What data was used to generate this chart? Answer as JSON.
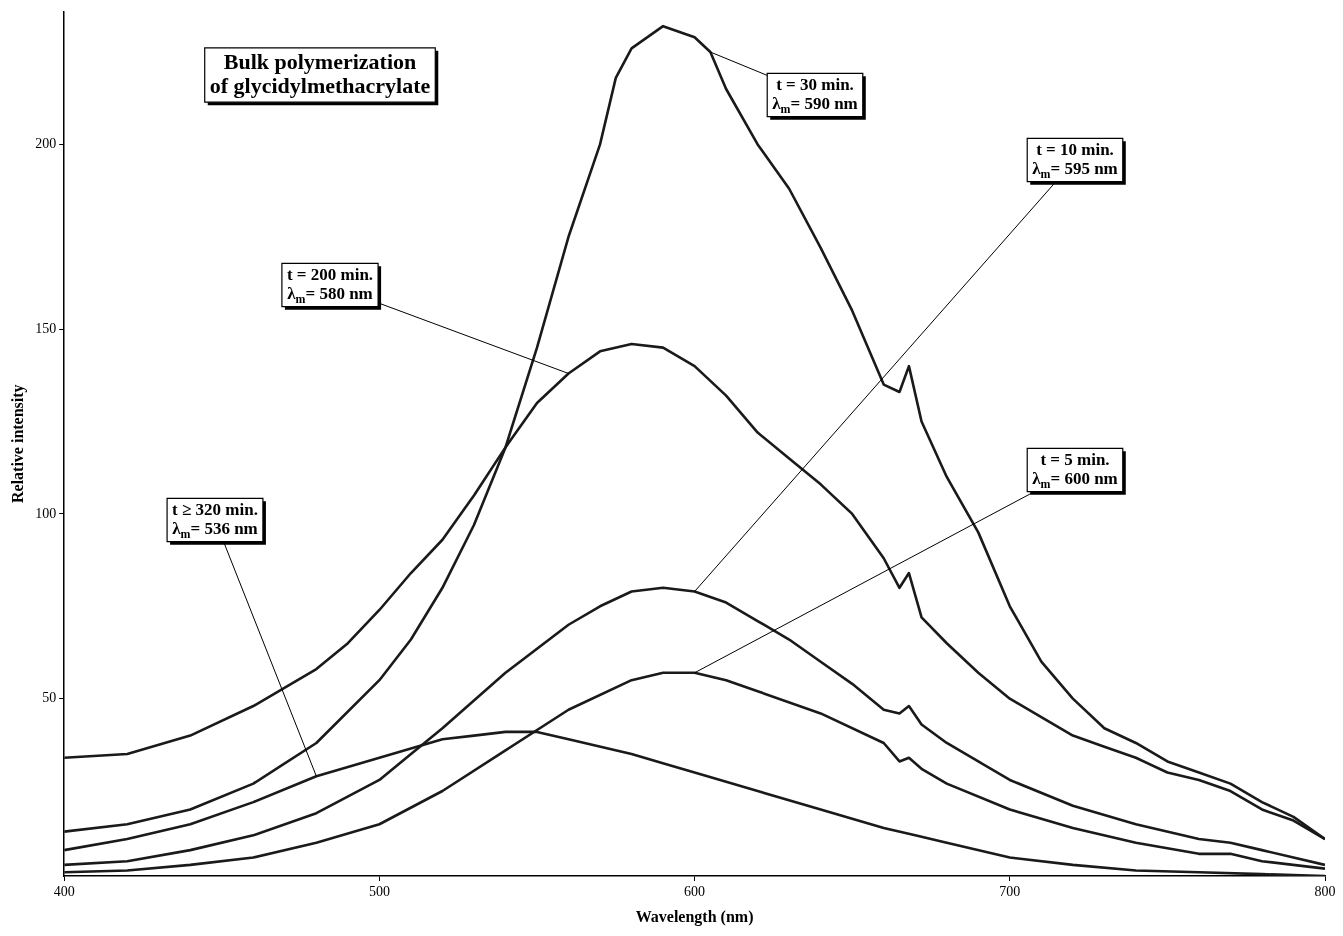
{
  "chart_data": {
    "type": "line",
    "title": "Bulk polymerization\nof glycidylmethacrylate",
    "xlabel": "Wavelength (nm)",
    "ylabel": "Relative intensity",
    "xlim": [
      400,
      800
    ],
    "xticks": [
      400,
      500,
      600,
      700,
      800
    ],
    "ylim": [
      2,
      236
    ],
    "yticks": [
      50,
      100,
      150,
      200
    ],
    "marker": "none",
    "line_style": "solid",
    "legend": false,
    "series": [
      {
        "name": "t = 30 min.\nλ$_{m}$= 590 nm",
        "color": "#1a1a1a",
        "x": [
          400,
          420,
          440,
          460,
          480,
          500,
          510,
          520,
          530,
          540,
          550,
          560,
          570,
          575,
          580,
          590,
          600,
          605,
          610,
          620,
          630,
          640,
          650,
          660,
          665,
          668,
          672,
          680,
          690,
          700,
          710,
          720,
          730,
          740,
          750,
          760,
          770,
          780,
          790,
          800
        ],
        "values": [
          14,
          16,
          20,
          27,
          38,
          55,
          66,
          80,
          97,
          118,
          145,
          175,
          200,
          218,
          226,
          232,
          229,
          225,
          215,
          200,
          188,
          172,
          155,
          135,
          133,
          140,
          125,
          110,
          95,
          75,
          60,
          50,
          42,
          38,
          33,
          30,
          27,
          22,
          18,
          12
        ]
      },
      {
        "name": "t = 200 min.\nλ$_{m}$= 580 nm",
        "color": "#1a1a1a",
        "x": [
          400,
          420,
          440,
          460,
          470,
          480,
          490,
          500,
          510,
          520,
          530,
          540,
          550,
          560,
          570,
          580,
          590,
          600,
          610,
          620,
          630,
          640,
          650,
          660,
          665,
          668,
          672,
          680,
          690,
          700,
          710,
          720,
          730,
          740,
          750,
          760,
          770,
          780,
          790,
          800
        ],
        "values": [
          34,
          35,
          40,
          48,
          53,
          58,
          65,
          74,
          84,
          93,
          105,
          118,
          130,
          138,
          144,
          146,
          145,
          140,
          132,
          122,
          115,
          108,
          100,
          88,
          80,
          84,
          72,
          65,
          57,
          50,
          45,
          40,
          37,
          34,
          30,
          28,
          25,
          20,
          17,
          12
        ]
      },
      {
        "name": "t = 10 min.\nλ$_{m}$= 595 nm",
        "color": "#1a1a1a",
        "x": [
          400,
          420,
          440,
          460,
          480,
          500,
          520,
          540,
          560,
          570,
          580,
          590,
          600,
          610,
          620,
          630,
          640,
          650,
          660,
          665,
          668,
          672,
          680,
          690,
          700,
          720,
          740,
          760,
          770,
          780,
          800
        ],
        "values": [
          5,
          6,
          9,
          13,
          19,
          28,
          42,
          57,
          70,
          75,
          79,
          80,
          79,
          76,
          71,
          66,
          60,
          54,
          47,
          46,
          48,
          43,
          38,
          33,
          28,
          21,
          16,
          12,
          11,
          9,
          5
        ]
      },
      {
        "name": "t = 5 min.\nλ$_{m}$= 600 nm",
        "color": "#1a1a1a",
        "x": [
          400,
          420,
          440,
          460,
          480,
          500,
          520,
          540,
          560,
          580,
          590,
          600,
          610,
          620,
          640,
          660,
          665,
          668,
          672,
          680,
          700,
          720,
          740,
          760,
          770,
          780,
          800
        ],
        "values": [
          3,
          3.5,
          5,
          7,
          11,
          16,
          25,
          36,
          47,
          55,
          57,
          57,
          55,
          52,
          46,
          38,
          33,
          34,
          31,
          27,
          20,
          15,
          11,
          8,
          8,
          6,
          4
        ]
      },
      {
        "name": "t ≥ 320 min.\nλ$_{m}$= 536 nm",
        "color": "#1a1a1a",
        "x": [
          400,
          420,
          440,
          460,
          480,
          500,
          520,
          530,
          540,
          550,
          560,
          580,
          600,
          620,
          640,
          660,
          670,
          680,
          700,
          720,
          740,
          760,
          780,
          800
        ],
        "values": [
          9,
          12,
          16,
          22,
          29,
          34,
          39,
          40,
          41,
          41,
          39,
          35,
          30,
          25,
          20,
          15,
          13,
          11,
          7,
          5,
          3.5,
          3,
          2.5,
          2
        ]
      }
    ]
  }
}
